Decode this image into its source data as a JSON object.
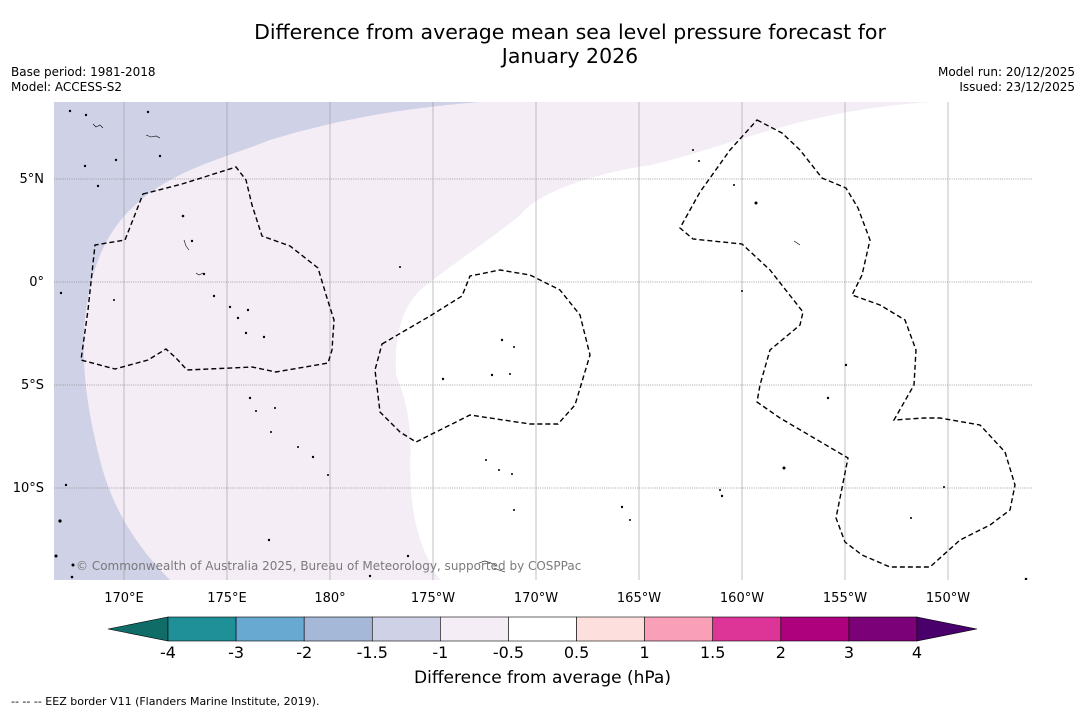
{
  "title": {
    "line1": "Difference from average mean sea level pressure forecast for",
    "line2": "January 2026"
  },
  "meta": {
    "base_period": "Base period: 1981-2018",
    "model": "Model: ACCESS-S2",
    "model_run": "Model run: 20/12/2025",
    "issued": "Issued: 23/12/2025"
  },
  "map": {
    "attribution": "© Commonwealth of Australia 2025, Bureau of Meteorology, supported by COSPPac",
    "lat_labels": [
      "5°N",
      "0°",
      "5°S",
      "10°S"
    ],
    "lon_labels": [
      "170°E",
      "175°E",
      "180°",
      "175°W",
      "170°W",
      "165°W",
      "160°W",
      "155°W",
      "150°W"
    ],
    "region_colors": {
      "class_minus1_5_to_minus1": "#cfd1e6",
      "class_minus1_to_minus0_5": "#f4edf6",
      "class_minus0_5_to_0_5": "#ffffff"
    }
  },
  "colorbar": {
    "ticks": [
      "-4",
      "-3",
      "-2",
      "-1.5",
      "-1",
      "-0.5",
      "0.5",
      "1",
      "1.5",
      "2",
      "3",
      "4"
    ],
    "colors": [
      "#1f8f98",
      "#67a9d0",
      "#a6b8d8",
      "#cfd1e6",
      "#f4edf6",
      "#ffffff",
      "#fde0dd",
      "#f99fb8",
      "#dd3497",
      "#ae017e",
      "#7a0177"
    ],
    "under_color": "#0f6c66",
    "over_color": "#4a006a",
    "label": "Difference from average (hPa)"
  },
  "footnote": "--  --  -- EEZ border V11 (Flanders Marine Institute, 2019)."
}
